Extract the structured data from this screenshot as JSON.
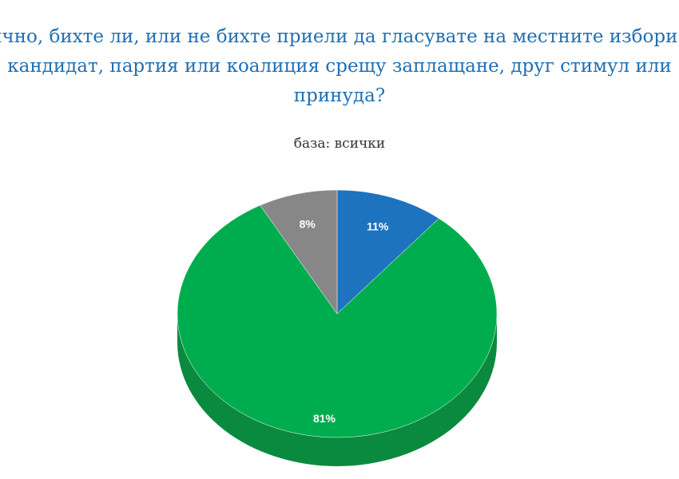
{
  "chart_data": {
    "type": "pie",
    "title_lines": [
      "Лично, бихте ли, или не бихте приели да гласувате на местните избори за",
      "кандидат, партия или коалиция срещу заплащане, друг стимул или",
      "принуда?"
    ],
    "subtitle": "база: всички",
    "slices": [
      {
        "value": 11,
        "label": "11%",
        "color": "#1e73be",
        "side_color": "#155a96"
      },
      {
        "value": 81,
        "label": "81%",
        "color": "#00ad4e",
        "side_color": "#0a8a3e"
      },
      {
        "value": 8,
        "label": "8%",
        "color": "#878787",
        "side_color": "#6b6b6b"
      }
    ]
  }
}
